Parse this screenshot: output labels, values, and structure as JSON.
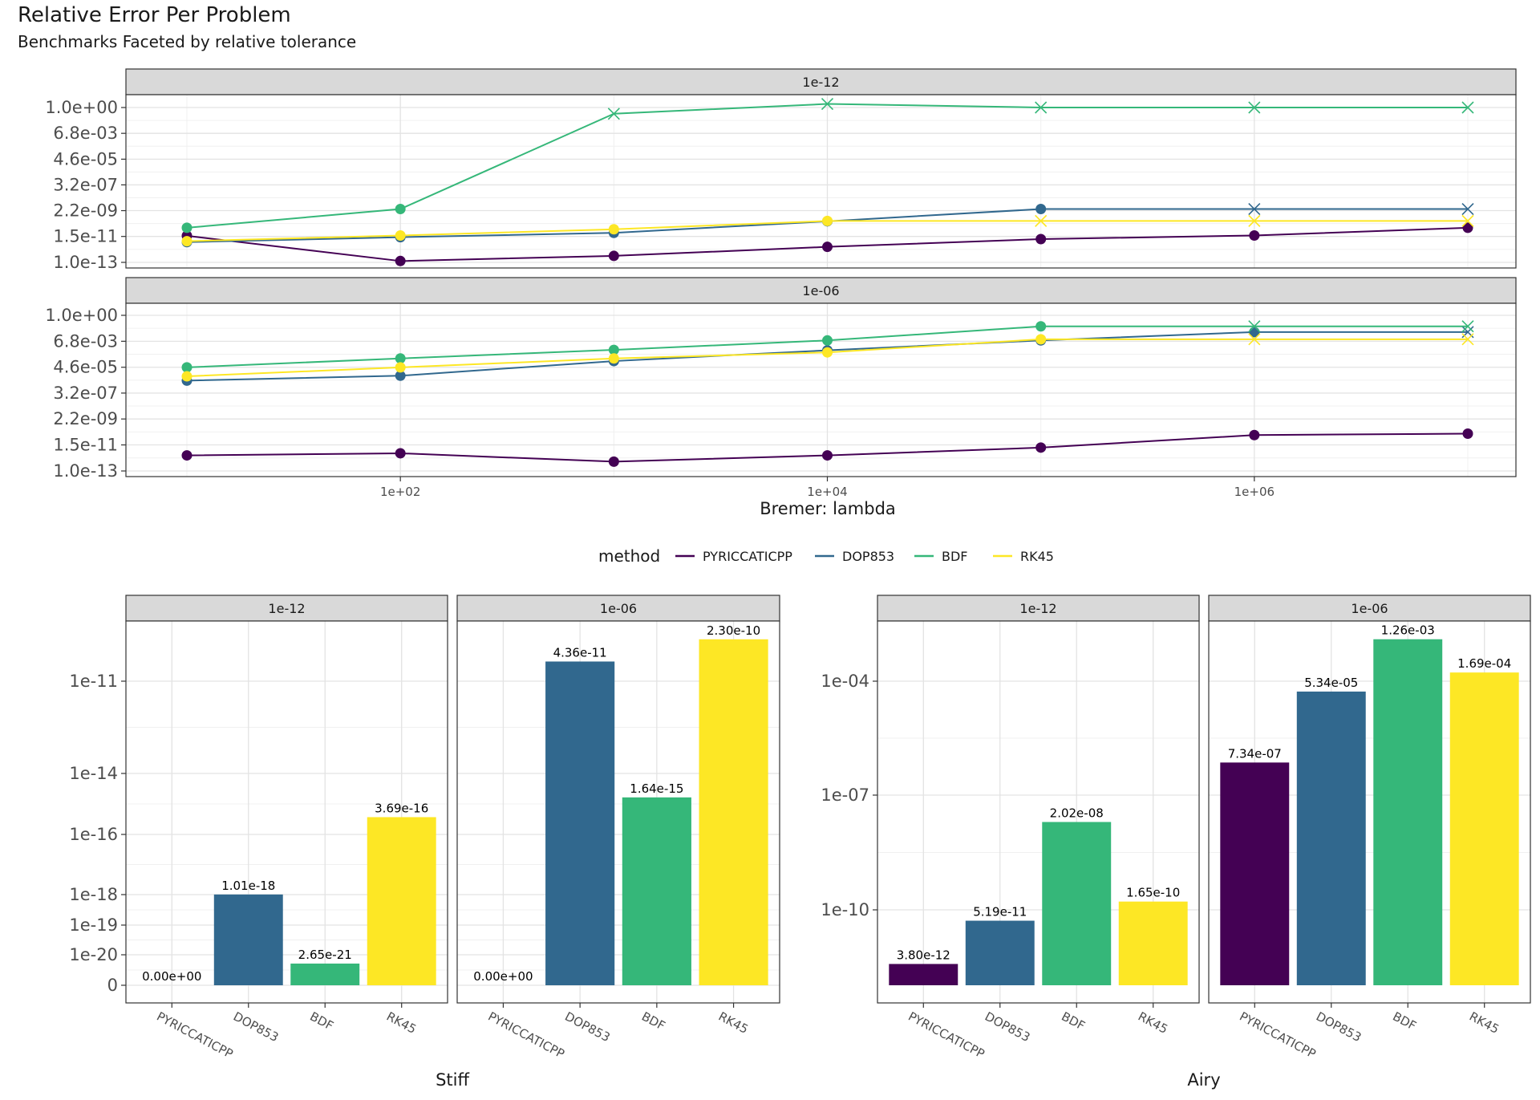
{
  "title": "Relative Error Per Problem",
  "subtitle": "Benchmarks Faceted by relative tolerance",
  "colors": {
    "PYRICCATICPP": "#440154",
    "DOP853": "#31688e",
    "BDF": "#35b779",
    "RK45": "#fde725"
  },
  "legend": {
    "title": "method",
    "placement": "center",
    "items": [
      "PYRICCATICPP",
      "DOP853",
      "BDF",
      "RK45"
    ]
  },
  "chart_data": [
    {
      "type": "line",
      "xlabel": "Bremer: lambda",
      "x_scale": "log10",
      "y_scale": "log10",
      "x_ticks": [
        "1e+02",
        "1e+04",
        "1e+06"
      ],
      "y_ticks": [
        "1.0e+00",
        "6.8e-03",
        "4.6e-05",
        "3.2e-07",
        "2.2e-09",
        "1.5e-11",
        "1.0e-13"
      ],
      "x": [
        10,
        100,
        1000,
        10000,
        100000,
        1000000,
        10000000
      ],
      "facets": [
        {
          "label": "1e-12",
          "series": [
            {
              "name": "PYRICCATICPP",
              "values": [
                1.7e-11,
                1.3e-13,
                3.5e-13,
                2e-12,
                9e-12,
                1.8e-11,
                8e-11
              ],
              "markers": [
                "o",
                "o",
                "o",
                "o",
                "o",
                "o",
                "o"
              ]
            },
            {
              "name": "DOP853",
              "values": [
                5e-12,
                1.3e-11,
                3e-11,
                2.8e-10,
                3e-09,
                3e-09,
                3e-09
              ],
              "markers": [
                "o",
                "o",
                "o",
                "o",
                "o",
                "x",
                "x"
              ]
            },
            {
              "name": "BDF",
              "values": [
                8e-11,
                3e-09,
                0.3,
                2.0,
                1.0,
                1.0,
                1.0
              ],
              "markers": [
                "o",
                "o",
                "x",
                "x",
                "x",
                "x",
                "x"
              ]
            },
            {
              "name": "RK45",
              "values": [
                6e-12,
                1.8e-11,
                6e-11,
                3e-10,
                3e-10,
                3e-10,
                3e-10
              ],
              "markers": [
                "o",
                "o",
                "o",
                "o",
                "x",
                "x",
                "x"
              ]
            }
          ]
        },
        {
          "label": "1e-06",
          "series": [
            {
              "name": "PYRICCATICPP",
              "values": [
                2e-12,
                3e-12,
                6e-13,
                2e-12,
                9e-12,
                1e-10,
                1.3e-10
              ],
              "markers": [
                "o",
                "o",
                "o",
                "o",
                "o",
                "o",
                "o"
              ]
            },
            {
              "name": "DOP853",
              "values": [
                3.5e-06,
                9e-06,
                0.00015,
                0.0012,
                0.008,
                0.04,
                0.04
              ],
              "markers": [
                "o",
                "o",
                "o",
                "o",
                "o",
                "o",
                "x"
              ]
            },
            {
              "name": "BDF",
              "values": [
                4.5e-05,
                0.00025,
                0.0013,
                0.008,
                0.12,
                0.12,
                0.12
              ],
              "markers": [
                "o",
                "o",
                "o",
                "o",
                "o",
                "x",
                "x"
              ]
            },
            {
              "name": "RK45",
              "values": [
                8e-06,
                4.5e-05,
                0.00025,
                0.0008,
                0.01,
                0.01,
                0.01
              ],
              "markers": [
                "o",
                "o",
                "o",
                "o",
                "o",
                "x",
                "x"
              ]
            }
          ]
        }
      ]
    },
    {
      "type": "bar",
      "xlabel": "Stiff",
      "y_scale": "pseudo-log",
      "categories": [
        "PYRICCATICPP",
        "DOP853",
        "BDF",
        "RK45"
      ],
      "y_ticks": [
        "1e-11",
        "1e-14",
        "1e-16",
        "1e-18",
        "1e-19",
        "1e-20",
        "0"
      ],
      "facets": [
        {
          "label": "1e-12",
          "values": [
            0,
            1.01e-18,
            2.65e-21,
            3.69e-16
          ],
          "value_labels": [
            "0.00e+00",
            "1.01e-18",
            "2.65e-21",
            "3.69e-16"
          ]
        },
        {
          "label": "1e-06",
          "values": [
            0,
            4.36e-11,
            1.64e-15,
            2.3e-10
          ],
          "value_labels": [
            "0.00e+00",
            "4.36e-11",
            "1.64e-15",
            "2.30e-10"
          ]
        }
      ]
    },
    {
      "type": "bar",
      "xlabel": "Airy",
      "y_scale": "log10",
      "categories": [
        "PYRICCATICPP",
        "DOP853",
        "BDF",
        "RK45"
      ],
      "y_ticks": [
        "1e-04",
        "1e-07",
        "1e-10"
      ],
      "facets": [
        {
          "label": "1e-12",
          "values": [
            3.8e-12,
            5.19e-11,
            2.02e-08,
            1.65e-10
          ],
          "value_labels": [
            "3.80e-12",
            "5.19e-11",
            "2.02e-08",
            "1.65e-10"
          ]
        },
        {
          "label": "1e-06",
          "values": [
            7.34e-07,
            5.34e-05,
            0.00126,
            0.000169
          ],
          "value_labels": [
            "7.34e-07",
            "5.34e-05",
            "1.26e-03",
            "1.69e-04"
          ]
        }
      ]
    }
  ]
}
